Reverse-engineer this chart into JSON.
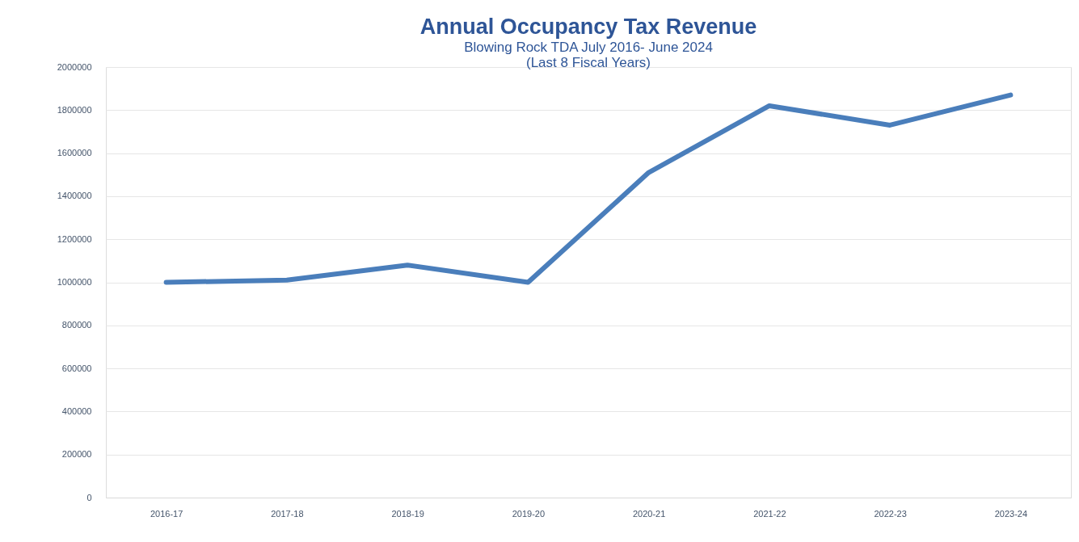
{
  "chart_data": {
    "type": "line",
    "title": "Annual Occupancy Tax Revenue",
    "subtitle": "Blowing Rock TDA July 2016- June 2024",
    "annotations": [
      "(Last 8 Fiscal Years)"
    ],
    "categories": [
      "2016-17",
      "2017-18",
      "2018-19",
      "2019-20",
      "2020-21",
      "2021-22",
      "2022-23",
      "2023-24"
    ],
    "series": [
      {
        "color": "#4a7ebb",
        "values": [
          1000000,
          1010000,
          1080000,
          1000000,
          1510000,
          1820000,
          1730000,
          1870000
        ]
      }
    ],
    "ylim": [
      0,
      2000000
    ],
    "yticks": [
      0,
      200000,
      400000,
      600000,
      800000,
      1000000,
      1200000,
      1400000,
      1600000,
      1800000,
      2000000
    ],
    "grid": "y",
    "marker": "none",
    "line_style": "solid"
  }
}
